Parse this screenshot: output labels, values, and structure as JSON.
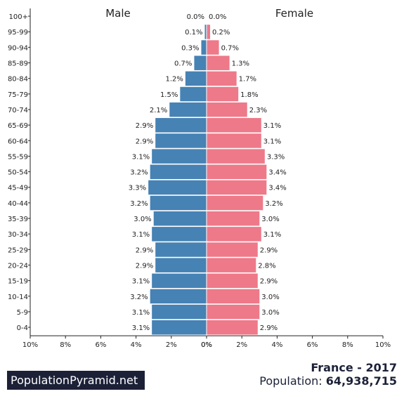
{
  "chart_data": {
    "type": "bar",
    "orientation": "horizontal-population-pyramid",
    "series_labels": {
      "male": "Male",
      "female": "Female"
    },
    "colors": {
      "male": "#4682b4",
      "female": "#ee7989"
    },
    "categories": [
      "100+",
      "95-99",
      "90-94",
      "85-89",
      "80-84",
      "75-79",
      "70-74",
      "65-69",
      "60-64",
      "55-59",
      "50-54",
      "45-49",
      "40-44",
      "35-39",
      "30-34",
      "25-29",
      "20-24",
      "15-19",
      "10-14",
      "5-9",
      "0-4"
    ],
    "male": [
      0.0,
      0.1,
      0.3,
      0.7,
      1.2,
      1.5,
      2.1,
      2.9,
      2.9,
      3.1,
      3.2,
      3.3,
      3.2,
      3.0,
      3.1,
      2.9,
      2.9,
      3.1,
      3.2,
      3.1,
      3.1
    ],
    "female": [
      0.0,
      0.2,
      0.7,
      1.3,
      1.7,
      1.8,
      2.3,
      3.1,
      3.1,
      3.3,
      3.4,
      3.4,
      3.2,
      3.0,
      3.1,
      2.9,
      2.8,
      2.9,
      3.0,
      3.0,
      2.9
    ],
    "x_ticks": [
      "10%",
      "8%",
      "6%",
      "4%",
      "2%",
      "0%",
      "0%",
      "2%",
      "4%",
      "6%",
      "8%",
      "10%"
    ],
    "xlim": [
      -10,
      10
    ]
  },
  "branding": {
    "site": "PopulationPyramid.net"
  },
  "footer": {
    "country_year": "France - 2017",
    "population_label": "Population:",
    "population_value": "64,938,715"
  }
}
